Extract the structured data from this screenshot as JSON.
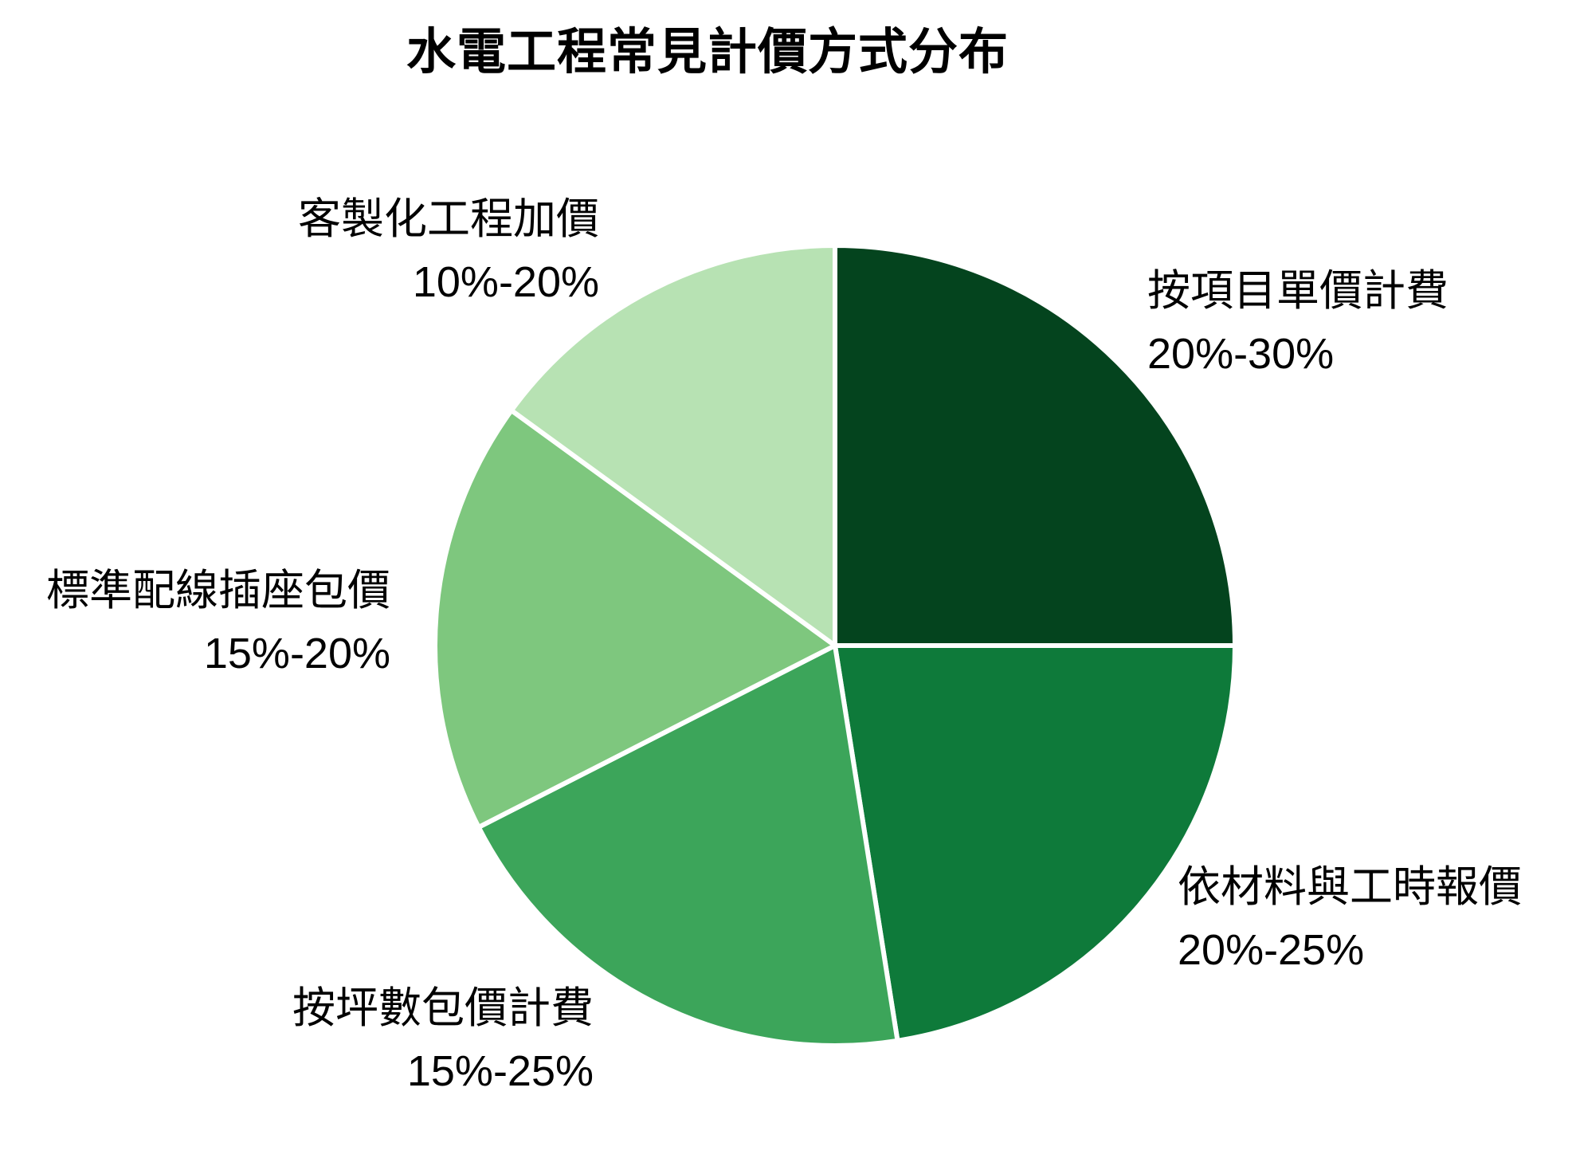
{
  "title": "水電工程常見計價方式分布",
  "chart_data": {
    "type": "pie",
    "title": "水電工程常見計價方式分布",
    "start_angle": "12-oclock",
    "direction": "clockwise",
    "legend": "none",
    "label_style": "outside, two lines (name + percent range)",
    "slices": [
      {
        "label": "按項目單價計費",
        "range": "20%-30%",
        "value": 25,
        "color": "#04441E"
      },
      {
        "label": "依材料與工時報價",
        "range": "20%-25%",
        "value": 22.5,
        "color": "#0E7A3A"
      },
      {
        "label": "按坪數包價計費",
        "range": "15%-25%",
        "value": 20,
        "color": "#3CA55A"
      },
      {
        "label": "標準配線插座包價",
        "range": "15%-20%",
        "value": 17.5,
        "color": "#7EC77E"
      },
      {
        "label": "客製化工程加價",
        "range": "10%-20%",
        "value": 15,
        "color": "#B7E2B3"
      }
    ],
    "wedge_border_color": "#FFFFFF",
    "background_color": "#FFFFFF",
    "text_color": "#000000"
  }
}
